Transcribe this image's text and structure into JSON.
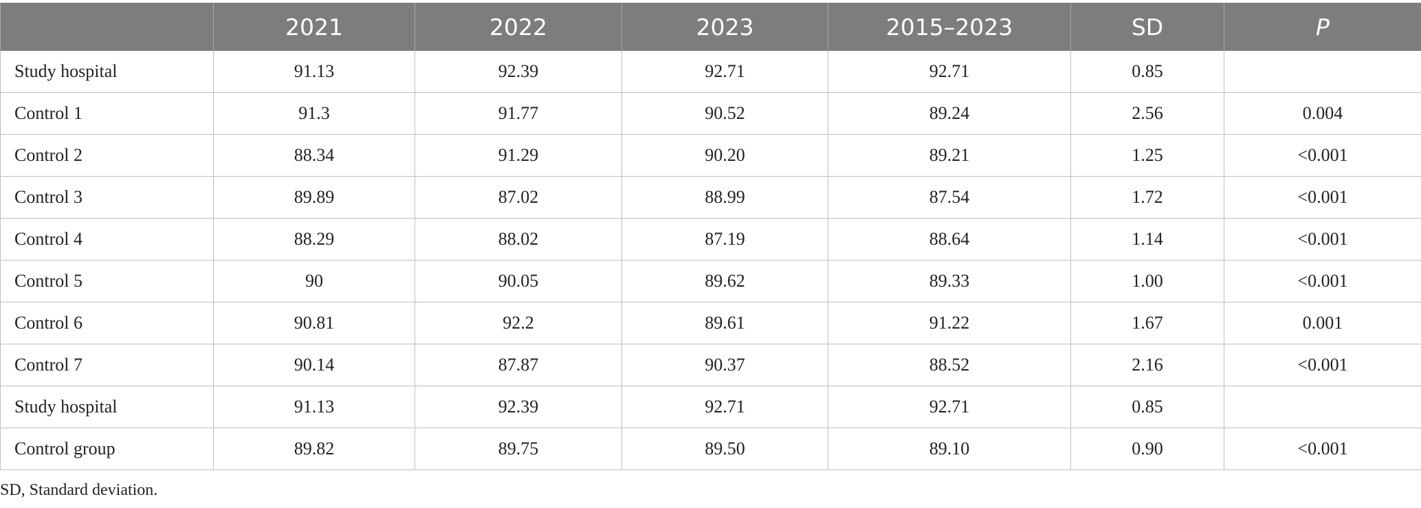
{
  "table": {
    "headers": [
      "",
      "2021",
      "2022",
      "2023",
      "2015–2023",
      "SD",
      "P"
    ],
    "rows": [
      {
        "label": "Study hospital",
        "v2021": "91.13",
        "v2022": "92.39",
        "v2023": "92.71",
        "v2015_2023": "92.71",
        "sd": "0.85",
        "p": ""
      },
      {
        "label": "Control 1",
        "v2021": "91.3",
        "v2022": "91.77",
        "v2023": "90.52",
        "v2015_2023": "89.24",
        "sd": "2.56",
        "p": "0.004"
      },
      {
        "label": "Control 2",
        "v2021": "88.34",
        "v2022": "91.29",
        "v2023": "90.20",
        "v2015_2023": "89.21",
        "sd": "1.25",
        "p": "<0.001"
      },
      {
        "label": "Control 3",
        "v2021": "89.89",
        "v2022": "87.02",
        "v2023": "88.99",
        "v2015_2023": "87.54",
        "sd": "1.72",
        "p": "<0.001"
      },
      {
        "label": "Control 4",
        "v2021": "88.29",
        "v2022": "88.02",
        "v2023": "87.19",
        "v2015_2023": "88.64",
        "sd": "1.14",
        "p": "<0.001"
      },
      {
        "label": "Control 5",
        "v2021": "90",
        "v2022": "90.05",
        "v2023": "89.62",
        "v2015_2023": "89.33",
        "sd": "1.00",
        "p": "<0.001"
      },
      {
        "label": "Control 6",
        "v2021": "90.81",
        "v2022": "92.2",
        "v2023": "89.61",
        "v2015_2023": "91.22",
        "sd": "1.67",
        "p": "0.001"
      },
      {
        "label": "Control 7",
        "v2021": "90.14",
        "v2022": "87.87",
        "v2023": "90.37",
        "v2015_2023": "88.52",
        "sd": "2.16",
        "p": "<0.001"
      },
      {
        "label": "Study hospital",
        "v2021": "91.13",
        "v2022": "92.39",
        "v2023": "92.71",
        "v2015_2023": "92.71",
        "sd": "0.85",
        "p": ""
      },
      {
        "label": "Control group",
        "v2021": "89.82",
        "v2022": "89.75",
        "v2023": "89.50",
        "v2015_2023": "89.10",
        "sd": "0.90",
        "p": "<0.001"
      }
    ]
  },
  "footnote": "SD, Standard deviation.",
  "colors": {
    "header_bg": "#7d7d7d",
    "header_text": "#ffffff",
    "grid": "#bfbfbf"
  }
}
